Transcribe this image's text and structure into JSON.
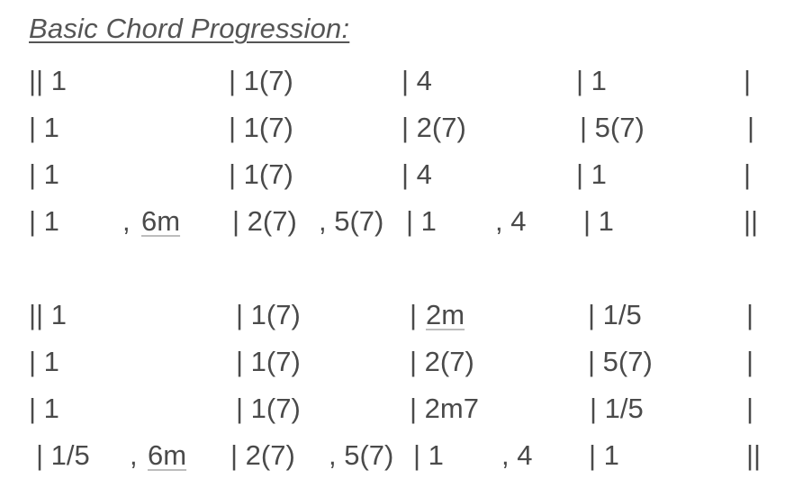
{
  "title": "Basic Chord Progression:",
  "sections": [
    {
      "lines": [
        [
          {
            "text": "|| 1",
            "underline": false
          },
          {
            "text": "| 1(7)",
            "underline": false
          },
          {
            "text": "| 4",
            "underline": false
          },
          {
            "text": "| 1",
            "underline": false
          },
          {
            "text": "|",
            "underline": false
          }
        ],
        [
          {
            "text": "| 1",
            "underline": false
          },
          {
            "text": "| 1(7)",
            "underline": false
          },
          {
            "text": "| 2(7)",
            "underline": false
          },
          {
            "text": "| 5(7)",
            "underline": false
          },
          {
            "text": "|",
            "underline": false
          }
        ],
        [
          {
            "text": "| 1",
            "underline": false
          },
          {
            "text": "| 1(7)",
            "underline": false
          },
          {
            "text": "| 4",
            "underline": false
          },
          {
            "text": "| 1",
            "underline": false
          },
          {
            "text": "|",
            "underline": false
          }
        ],
        [
          {
            "text": "| 1",
            "underline": false
          },
          {
            "text": ",",
            "underline": false
          },
          {
            "text": "6m",
            "underline": true
          },
          {
            "text": "| 2(7)",
            "underline": false
          },
          {
            "text": ", 5(7)",
            "underline": false
          },
          {
            "text": "| 1",
            "underline": false
          },
          {
            "text": ", 4",
            "underline": false
          },
          {
            "text": "| 1",
            "underline": false
          },
          {
            "text": "||",
            "underline": false
          }
        ]
      ]
    },
    {
      "lines": [
        [
          {
            "text": "|| 1",
            "underline": false
          },
          {
            "text": "| 1(7)",
            "underline": false
          },
          {
            "text": "|",
            "underline": false
          },
          {
            "text": "2m",
            "underline": true
          },
          {
            "text": "| 1/5",
            "underline": false
          },
          {
            "text": "|",
            "underline": false
          }
        ],
        [
          {
            "text": "| 1",
            "underline": false
          },
          {
            "text": "| 1(7)",
            "underline": false
          },
          {
            "text": "| 2(7)",
            "underline": false
          },
          {
            "text": "| 5(7)",
            "underline": false
          },
          {
            "text": "|",
            "underline": false
          }
        ],
        [
          {
            "text": "| 1",
            "underline": false
          },
          {
            "text": "| 1(7)",
            "underline": false
          },
          {
            "text": "| 2m7",
            "underline": false
          },
          {
            "text": "| 1/5",
            "underline": false
          },
          {
            "text": "|",
            "underline": false
          }
        ],
        [
          {
            "text": "| 1/5",
            "underline": false
          },
          {
            "text": ",",
            "underline": false
          },
          {
            "text": "6m",
            "underline": true
          },
          {
            "text": "| 2(7)",
            "underline": false
          },
          {
            "text": ", 5(7)",
            "underline": false
          },
          {
            "text": "| 1",
            "underline": false
          },
          {
            "text": ", 4",
            "underline": false
          },
          {
            "text": "| 1",
            "underline": false
          },
          {
            "text": "||",
            "underline": false
          }
        ]
      ]
    }
  ]
}
